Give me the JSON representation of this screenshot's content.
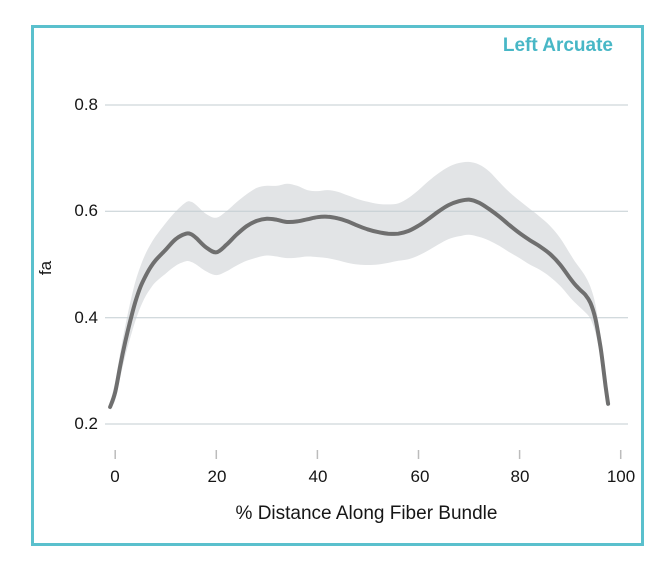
{
  "window": {
    "border_color": "#5ac0cd",
    "background_color": "#ffffff"
  },
  "chart_data": {
    "type": "line",
    "title": "Left Arcuate",
    "title_color": "#48b7c6",
    "xlabel": "% Distance Along Fiber Bundle",
    "ylabel": "fa",
    "xlim": [
      -2,
      101
    ],
    "ylim": [
      0.15,
      0.88
    ],
    "grid": "horizontal",
    "legend": "none",
    "xticks": [
      0,
      20,
      40,
      60,
      80,
      100
    ],
    "xtick_labels": [
      "0",
      "20",
      "40",
      "60",
      "80",
      "100"
    ],
    "yticks": [
      0.8,
      0.6,
      0.4,
      0.2
    ],
    "ytick_labels": [
      "0.8",
      "0.6",
      "0.4",
      "0.2"
    ],
    "line_color": "#6f6f6f",
    "band_color": "#e2e4e6",
    "grid_color": "#c3cdd2",
    "tick_color": "#bcbcbc",
    "series": [
      {
        "name": "fa mean",
        "x": [
          -1,
          0,
          1,
          2,
          3,
          4,
          5,
          6,
          7,
          8,
          10,
          12,
          14,
          15,
          16,
          18,
          20,
          22,
          24,
          26,
          28,
          30,
          32,
          34,
          36,
          38,
          40,
          42,
          44,
          46,
          48,
          50,
          52,
          54,
          56,
          58,
          60,
          62,
          64,
          66,
          68,
          70,
          72,
          74,
          76,
          78,
          80,
          82,
          84,
          86,
          88,
          90,
          91,
          92,
          93,
          94,
          95,
          96,
          96.5,
          97,
          97.5
        ],
        "y": [
          0.232,
          0.26,
          0.31,
          0.355,
          0.395,
          0.43,
          0.458,
          0.478,
          0.495,
          0.508,
          0.528,
          0.548,
          0.558,
          0.557,
          0.55,
          0.532,
          0.523,
          0.537,
          0.556,
          0.572,
          0.582,
          0.586,
          0.584,
          0.58,
          0.581,
          0.585,
          0.589,
          0.59,
          0.587,
          0.581,
          0.573,
          0.566,
          0.561,
          0.558,
          0.558,
          0.563,
          0.573,
          0.586,
          0.6,
          0.612,
          0.619,
          0.622,
          0.616,
          0.604,
          0.59,
          0.574,
          0.559,
          0.546,
          0.534,
          0.52,
          0.5,
          0.474,
          0.462,
          0.452,
          0.443,
          0.428,
          0.398,
          0.345,
          0.31,
          0.272,
          0.238
        ]
      }
    ],
    "band": {
      "name": "fa std band",
      "x": [
        -1,
        0,
        1,
        2,
        3,
        4,
        5,
        6,
        7,
        8,
        10,
        12,
        14,
        15,
        16,
        18,
        20,
        22,
        24,
        26,
        28,
        30,
        32,
        34,
        36,
        38,
        40,
        42,
        44,
        46,
        48,
        50,
        52,
        54,
        56,
        58,
        60,
        62,
        64,
        66,
        68,
        70,
        72,
        74,
        76,
        78,
        80,
        82,
        84,
        86,
        88,
        90,
        91,
        92,
        93,
        94,
        95,
        96,
        96.5,
        97,
        97.5
      ],
      "upper": [
        0.24,
        0.28,
        0.335,
        0.385,
        0.43,
        0.468,
        0.497,
        0.52,
        0.538,
        0.553,
        0.578,
        0.6,
        0.617,
        0.618,
        0.612,
        0.595,
        0.588,
        0.6,
        0.617,
        0.632,
        0.644,
        0.648,
        0.648,
        0.652,
        0.648,
        0.64,
        0.638,
        0.64,
        0.637,
        0.63,
        0.623,
        0.618,
        0.614,
        0.613,
        0.615,
        0.625,
        0.64,
        0.657,
        0.672,
        0.684,
        0.691,
        0.693,
        0.688,
        0.675,
        0.655,
        0.636,
        0.62,
        0.605,
        0.59,
        0.573,
        0.55,
        0.52,
        0.505,
        0.492,
        0.478,
        0.458,
        0.425,
        0.365,
        0.325,
        0.283,
        0.243
      ],
      "lower": [
        0.226,
        0.245,
        0.288,
        0.328,
        0.363,
        0.394,
        0.42,
        0.44,
        0.455,
        0.467,
        0.483,
        0.498,
        0.506,
        0.505,
        0.5,
        0.487,
        0.48,
        0.487,
        0.498,
        0.507,
        0.513,
        0.517,
        0.515,
        0.512,
        0.513,
        0.515,
        0.514,
        0.512,
        0.508,
        0.503,
        0.5,
        0.499,
        0.5,
        0.503,
        0.507,
        0.51,
        0.517,
        0.527,
        0.538,
        0.548,
        0.553,
        0.556,
        0.552,
        0.545,
        0.535,
        0.523,
        0.512,
        0.5,
        0.49,
        0.477,
        0.46,
        0.438,
        0.428,
        0.419,
        0.41,
        0.398,
        0.372,
        0.326,
        0.296,
        0.262,
        0.233
      ]
    }
  }
}
